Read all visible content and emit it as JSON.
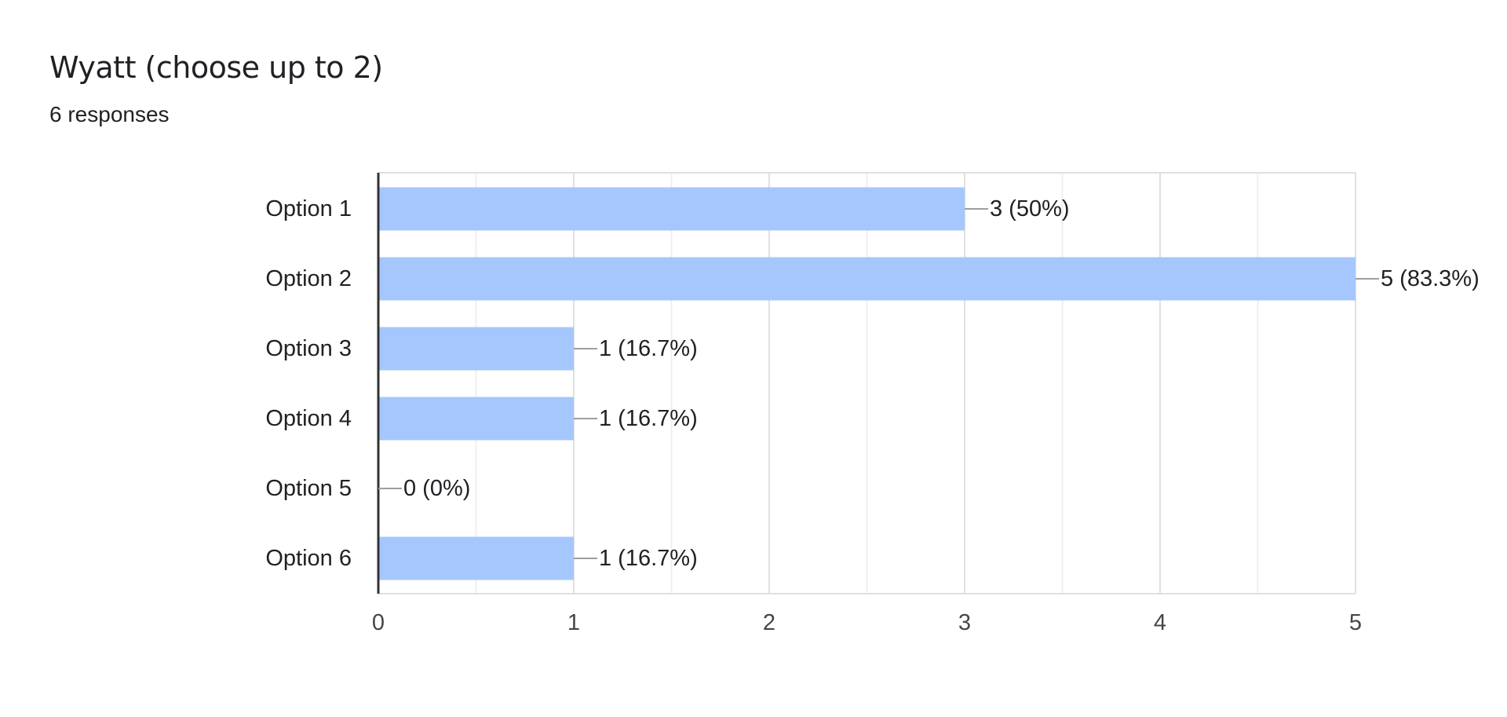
{
  "question": {
    "title": "Wyatt (choose up to 2)",
    "responses": "6 responses"
  },
  "colors": {
    "bar": "#a5c7fd",
    "grid_major": "#e0e0e0",
    "grid_minor": "#efefef",
    "axis": "#333333",
    "connector": "#9e9e9e"
  },
  "chart_data": {
    "type": "bar",
    "orientation": "horizontal",
    "title": "",
    "xlabel": "",
    "ylabel": "",
    "categories": [
      "Option 1",
      "Option 2",
      "Option 3",
      "Option 4",
      "Option 5",
      "Option 6"
    ],
    "values": [
      3,
      5,
      1,
      1,
      0,
      1
    ],
    "data_labels": [
      "3 (50%)",
      "5 (83.3%)",
      "1 (16.7%)",
      "1 (16.7%)",
      "0 (0%)",
      "1 (16.7%)"
    ],
    "xlim": [
      0,
      5
    ],
    "xticks": [
      "0",
      "1",
      "2",
      "3",
      "4",
      "5"
    ],
    "grid": true,
    "legend": "none"
  }
}
